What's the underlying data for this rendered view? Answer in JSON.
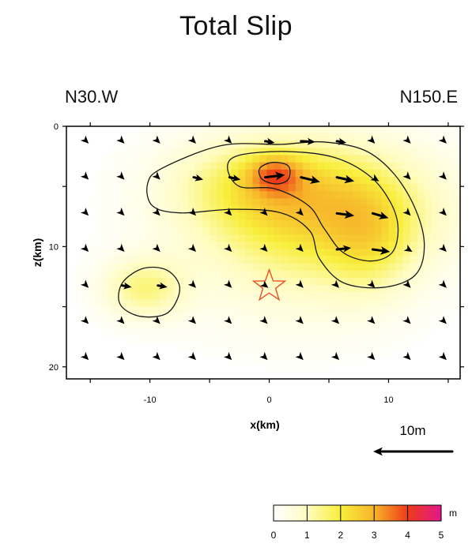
{
  "chart_data": {
    "type": "heatmap",
    "title": "Total Slip",
    "strike_labels": {
      "left": "N30.W",
      "right": "N150.E"
    },
    "xlabel": "x(km)",
    "ylabel": "z(km)",
    "xlim": [
      -17,
      16
    ],
    "ylim": [
      0,
      21
    ],
    "y_inverted": true,
    "x_ticks": [
      {
        "value": -10,
        "label": "-10"
      },
      {
        "value": 0,
        "label": "0"
      },
      {
        "value": 10,
        "label": "10"
      }
    ],
    "y_ticks": [
      {
        "value": 0,
        "label": "0"
      },
      {
        "value": 10,
        "label": "10"
      },
      {
        "value": 20,
        "label": "20"
      }
    ],
    "slip_patches": [
      {
        "x": 4,
        "z": 7,
        "rx": 10,
        "rz": 5.5,
        "amp": 2.4
      },
      {
        "x": -1,
        "z": 4.5,
        "rx": 7,
        "rz": 3.5,
        "amp": 0.9
      },
      {
        "x": 0.5,
        "z": 4,
        "rx": 2.2,
        "rz": 1.6,
        "amp": 1.6
      },
      {
        "x": 8.5,
        "z": 9.5,
        "rx": 3.5,
        "rz": 4.5,
        "amp": 0.9
      },
      {
        "x": -10.5,
        "z": 13.5,
        "rx": 3.5,
        "rz": 2.5,
        "amp": 1.4
      },
      {
        "x": 2,
        "z": 14,
        "rx": 9,
        "rz": 5,
        "amp": 0.35
      }
    ],
    "contours": [
      {
        "level": 1,
        "points": [
          [
            -9,
            3.5
          ],
          [
            -4,
            1.6
          ],
          [
            1,
            1.5
          ],
          [
            4.5,
            1.3
          ],
          [
            8,
            2.0
          ],
          [
            10.5,
            4.0
          ],
          [
            12.3,
            7.0
          ],
          [
            13.0,
            10.0
          ],
          [
            12.2,
            12.4
          ],
          [
            9.5,
            13.4
          ],
          [
            6.2,
            13.0
          ],
          [
            4.2,
            11.0
          ],
          [
            3.4,
            8.7
          ],
          [
            1.0,
            7.2
          ],
          [
            -3.0,
            6.9
          ],
          [
            -7.5,
            7.2
          ],
          [
            -9.8,
            6.6
          ],
          [
            -10.2,
            4.8
          ]
        ]
      },
      {
        "level": 2,
        "points": [
          [
            -3.5,
            3.4
          ],
          [
            -2.5,
            2.4
          ],
          [
            1.5,
            2.1
          ],
          [
            5.5,
            2.6
          ],
          [
            8.5,
            4.2
          ],
          [
            10.2,
            6.4
          ],
          [
            10.8,
            8.5
          ],
          [
            10.3,
            10.5
          ],
          [
            8.5,
            11.2
          ],
          [
            6.2,
            10.5
          ],
          [
            4.6,
            8.5
          ],
          [
            3.3,
            6.6
          ],
          [
            0.5,
            5.2
          ],
          [
            -2.5,
            5.0
          ]
        ]
      },
      {
        "level": 3,
        "points": [
          [
            -0.8,
            3.5
          ],
          [
            0.3,
            3.0
          ],
          [
            1.6,
            3.3
          ],
          [
            1.6,
            4.4
          ],
          [
            0.6,
            4.8
          ],
          [
            -0.6,
            4.4
          ]
        ]
      },
      {
        "level": 1,
        "points": [
          [
            -12.3,
            13.0
          ],
          [
            -10.5,
            11.8
          ],
          [
            -8.5,
            12.0
          ],
          [
            -7.5,
            13.5
          ],
          [
            -8.5,
            15.5
          ],
          [
            -10.8,
            15.8
          ],
          [
            -12.5,
            14.8
          ]
        ]
      }
    ],
    "slip_vectors": {
      "grid_x": [
        -15,
        -12,
        -9,
        -6,
        -3,
        0,
        3,
        6,
        9,
        12,
        15
      ],
      "grid_z": [
        1.5,
        4.5,
        7.5,
        10.5,
        13.5,
        16.5,
        19.5
      ],
      "scale_label": "10m",
      "scale_length_m": 10,
      "rows": [
        [
          [
            0.3,
            0.3
          ],
          [
            0.3,
            0.3
          ],
          [
            0.3,
            0.3
          ],
          [
            0.3,
            0.3
          ],
          [
            0.3,
            0.3
          ],
          [
            1.2,
            0.2
          ],
          [
            1.8,
            0.1
          ],
          [
            1.2,
            0.2
          ],
          [
            0.3,
            0.3
          ],
          [
            0.3,
            0.3
          ],
          [
            0.3,
            0.3
          ]
        ],
        [
          [
            0.3,
            0.3
          ],
          [
            0.3,
            0.3
          ],
          [
            0.3,
            0.3
          ],
          [
            1.2,
            0.3
          ],
          [
            1.4,
            0.3
          ],
          [
            2.5,
            -0.3
          ],
          [
            2.4,
            0.6
          ],
          [
            2.2,
            0.5
          ],
          [
            0.8,
            0.5
          ],
          [
            0.3,
            0.3
          ],
          [
            0.3,
            0.3
          ]
        ],
        [
          [
            0.3,
            0.3
          ],
          [
            0.3,
            0.3
          ],
          [
            0.3,
            0.3
          ],
          [
            0.3,
            0.3
          ],
          [
            0.3,
            0.3
          ],
          [
            0.3,
            0.3
          ],
          [
            0.3,
            0.3
          ],
          [
            2.2,
            0.3
          ],
          [
            2.0,
            0.6
          ],
          [
            0.3,
            0.3
          ],
          [
            0.3,
            0.3
          ]
        ],
        [
          [
            0.3,
            0.3
          ],
          [
            0.3,
            0.3
          ],
          [
            0.3,
            0.3
          ],
          [
            0.3,
            0.3
          ],
          [
            0.3,
            0.3
          ],
          [
            0.3,
            0.3
          ],
          [
            0.3,
            0.3
          ],
          [
            1.8,
            -0.2
          ],
          [
            2.2,
            0.3
          ],
          [
            0.5,
            0.3
          ],
          [
            0.3,
            0.3
          ]
        ],
        [
          [
            0.3,
            0.3
          ],
          [
            1.2,
            0.2
          ],
          [
            1.2,
            0.2
          ],
          [
            0.3,
            0.3
          ],
          [
            0.3,
            0.3
          ],
          [
            0.4,
            0.3
          ],
          [
            0.3,
            0.3
          ],
          [
            0.3,
            0.3
          ],
          [
            0.3,
            0.3
          ],
          [
            0.3,
            0.3
          ],
          [
            0.3,
            0.3
          ]
        ],
        [
          [
            0.3,
            0.3
          ],
          [
            0.3,
            0.3
          ],
          [
            0.3,
            0.3
          ],
          [
            0.3,
            0.3
          ],
          [
            0.3,
            0.3
          ],
          [
            0.3,
            0.3
          ],
          [
            0.3,
            0.3
          ],
          [
            0.3,
            0.3
          ],
          [
            0.3,
            0.3
          ],
          [
            0.3,
            0.3
          ],
          [
            0.3,
            0.3
          ]
        ],
        [
          [
            0.3,
            0.3
          ],
          [
            0.3,
            0.3
          ],
          [
            0.3,
            0.3
          ],
          [
            0.3,
            0.3
          ],
          [
            0.3,
            0.3
          ],
          [
            0.3,
            0.3
          ],
          [
            0.3,
            0.3
          ],
          [
            0.3,
            0.3
          ],
          [
            0.3,
            0.3
          ],
          [
            0.3,
            0.3
          ],
          [
            0.3,
            0.3
          ]
        ]
      ]
    },
    "hypocenter": {
      "x": 0,
      "z": 13.3
    },
    "colorbar": {
      "unit": "m",
      "min": 0,
      "max": 5,
      "ticks": [
        "0",
        "1",
        "2",
        "3",
        "4",
        "5"
      ],
      "stops": [
        {
          "value": 0,
          "color": "#ffffff"
        },
        {
          "value": 1,
          "color": "#fffcc0"
        },
        {
          "value": 2,
          "color": "#f8ee3a"
        },
        {
          "value": 3,
          "color": "#f7b52a"
        },
        {
          "value": 4,
          "color": "#ee3c16"
        },
        {
          "value": 5,
          "color": "#e4168c"
        }
      ]
    },
    "colors": {
      "contour": "#1a1a1a",
      "vector": "#000000",
      "hypocenter": "#e8502a"
    }
  }
}
